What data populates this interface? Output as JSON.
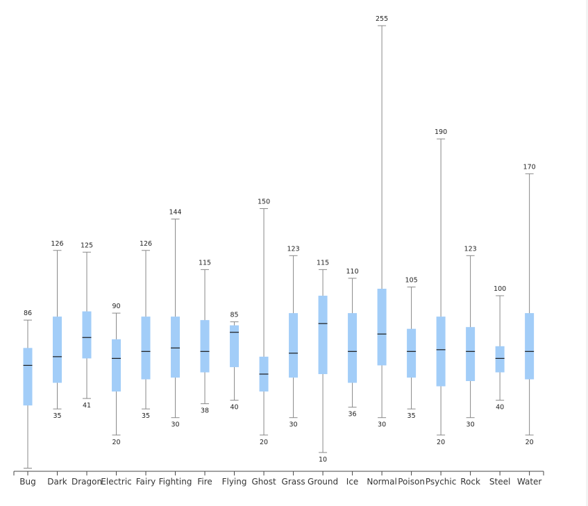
{
  "chart_data": {
    "type": "boxplot",
    "title": "",
    "xlabel": "",
    "ylabel": "",
    "ylim": [
      0,
      255
    ],
    "grid": false,
    "legend": "none",
    "box_color": "#a2cdf8",
    "median_color": "#1a1a1a",
    "whisker_color": "#888888",
    "categories": [
      "Bug",
      "Dark",
      "Dragon",
      "Electric",
      "Fairy",
      "Fighting",
      "Fire",
      "Flying",
      "Ghost",
      "Grass",
      "Ground",
      "Ice",
      "Normal",
      "Poison",
      "Psychic",
      "Rock",
      "Steel",
      "Water"
    ],
    "boxes": [
      {
        "category": "Bug",
        "min": 1,
        "q1": 37,
        "median": 60,
        "q3": 70,
        "max": 86
      },
      {
        "category": "Dark",
        "min": 35,
        "q1": 50,
        "median": 65,
        "q3": 88,
        "max": 126
      },
      {
        "category": "Dragon",
        "min": 41,
        "q1": 64,
        "median": 76,
        "q3": 91,
        "max": 125
      },
      {
        "category": "Electric",
        "min": 20,
        "q1": 45,
        "median": 64,
        "q3": 75,
        "max": 90
      },
      {
        "category": "Fairy",
        "min": 35,
        "q1": 52,
        "median": 68,
        "q3": 88,
        "max": 126
      },
      {
        "category": "Fighting",
        "min": 30,
        "q1": 53,
        "median": 70,
        "q3": 88,
        "max": 144
      },
      {
        "category": "Fire",
        "min": 38,
        "q1": 56,
        "median": 68,
        "q3": 86,
        "max": 115
      },
      {
        "category": "Flying",
        "min": 40,
        "q1": 59,
        "median": 79,
        "q3": 83,
        "max": 85
      },
      {
        "category": "Ghost",
        "min": 20,
        "q1": 45,
        "median": 55,
        "q3": 65,
        "max": 150
      },
      {
        "category": "Grass",
        "min": 30,
        "q1": 53,
        "median": 67,
        "q3": 90,
        "max": 123
      },
      {
        "category": "Ground",
        "min": 10,
        "q1": 55,
        "median": 84,
        "q3": 100,
        "max": 115
      },
      {
        "category": "Ice",
        "min": 36,
        "q1": 50,
        "median": 68,
        "q3": 90,
        "max": 110
      },
      {
        "category": "Normal",
        "min": 30,
        "q1": 60,
        "median": 78,
        "q3": 104,
        "max": 255
      },
      {
        "category": "Poison",
        "min": 35,
        "q1": 53,
        "median": 68,
        "q3": 81,
        "max": 105
      },
      {
        "category": "Psychic",
        "min": 20,
        "q1": 48,
        "median": 69,
        "q3": 88,
        "max": 190
      },
      {
        "category": "Rock",
        "min": 30,
        "q1": 51,
        "median": 68,
        "q3": 82,
        "max": 123
      },
      {
        "category": "Steel",
        "min": 40,
        "q1": 56,
        "median": 64,
        "q3": 71,
        "max": 100
      },
      {
        "category": "Water",
        "min": 20,
        "q1": 52,
        "median": 68,
        "q3": 90,
        "max": 170
      }
    ],
    "labels": [
      {
        "category": "Bug",
        "top": "86",
        "bottom": ""
      },
      {
        "category": "Dark",
        "top": "126",
        "bottom": "35"
      },
      {
        "category": "Dragon",
        "top": "125",
        "bottom": "41"
      },
      {
        "category": "Electric",
        "top": "90",
        "bottom": "20"
      },
      {
        "category": "Fairy",
        "top": "126",
        "bottom": "35"
      },
      {
        "category": "Fighting",
        "top": "144",
        "bottom": "30"
      },
      {
        "category": "Fire",
        "top": "115",
        "bottom": "38"
      },
      {
        "category": "Flying",
        "top": "85",
        "bottom": "40"
      },
      {
        "category": "Ghost",
        "top": "150",
        "bottom": "20"
      },
      {
        "category": "Grass",
        "top": "123",
        "bottom": "30"
      },
      {
        "category": "Ground",
        "top": "115",
        "bottom": "10"
      },
      {
        "category": "Ice",
        "top": "110",
        "bottom": "36"
      },
      {
        "category": "Normal",
        "top": "255",
        "bottom": "30"
      },
      {
        "category": "Poison",
        "top": "105",
        "bottom": "35"
      },
      {
        "category": "Psychic",
        "top": "190",
        "bottom": "20"
      },
      {
        "category": "Rock",
        "top": "123",
        "bottom": "30"
      },
      {
        "category": "Steel",
        "top": "100",
        "bottom": "40"
      },
      {
        "category": "Water",
        "top": "170",
        "bottom": "20"
      }
    ]
  }
}
